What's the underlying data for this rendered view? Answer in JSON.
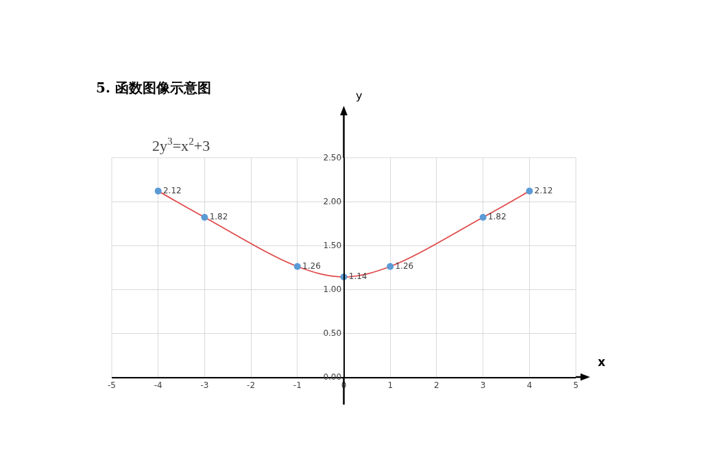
{
  "chart_data": {
    "type": "line",
    "title": "5. 函数图像示意图",
    "subtitle": "2y$^{3}$=x$^{2}$+3",
    "xlabel": "x",
    "ylabel": "y",
    "x": [
      -4,
      -3,
      -1,
      0,
      1,
      3,
      4
    ],
    "series": [
      {
        "color": "#e04848",
        "colors": [
          "#5b9bd5",
          "#5b9bd5",
          "#5b9bd5",
          "#5b9bd5",
          "#5b9bd5",
          "#5b9bd5",
          "#5b9bd5"
        ],
        "values": [
          2.12,
          1.82,
          1.26,
          1.14,
          1.26,
          1.82,
          2.12
        ]
      }
    ],
    "data_labels": true,
    "marker": "circle",
    "line_style": "solid",
    "grid": true,
    "legend": false,
    "xlim": [
      -5,
      5
    ],
    "xticks": [
      -5,
      -4,
      -3,
      -2,
      -1,
      0,
      1,
      2,
      3,
      4,
      5
    ],
    "ylim": [
      0,
      2.5
    ],
    "yticks": [
      {
        "value": 0,
        "label": "0.00"
      },
      {
        "value": 0.5,
        "label": "0.50"
      },
      {
        "value": 1,
        "label": "1.00"
      },
      {
        "value": 1.5,
        "label": "1.50"
      },
      {
        "value": 2,
        "label": "2.00"
      },
      {
        "value": 2.5,
        "label": "2.50"
      }
    ]
  }
}
